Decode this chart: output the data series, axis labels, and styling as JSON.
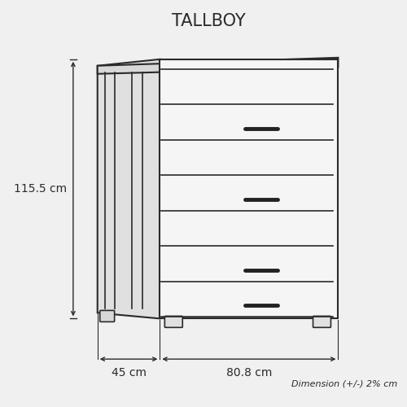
{
  "title": "TALLBOY",
  "dim_height": "115.5 cm",
  "dim_width": "80.8 cm",
  "dim_depth": "45 cm",
  "note": "Dimension (+/-) 2% cm",
  "bg_color": "#f0f0f0",
  "line_color": "#2a2a2a",
  "num_drawers": 7,
  "figsize": [
    5.0,
    5.0
  ],
  "dpi": 100,
  "handle_drawers": [
    1,
    3,
    5,
    6
  ],
  "handle_color": "#222222"
}
